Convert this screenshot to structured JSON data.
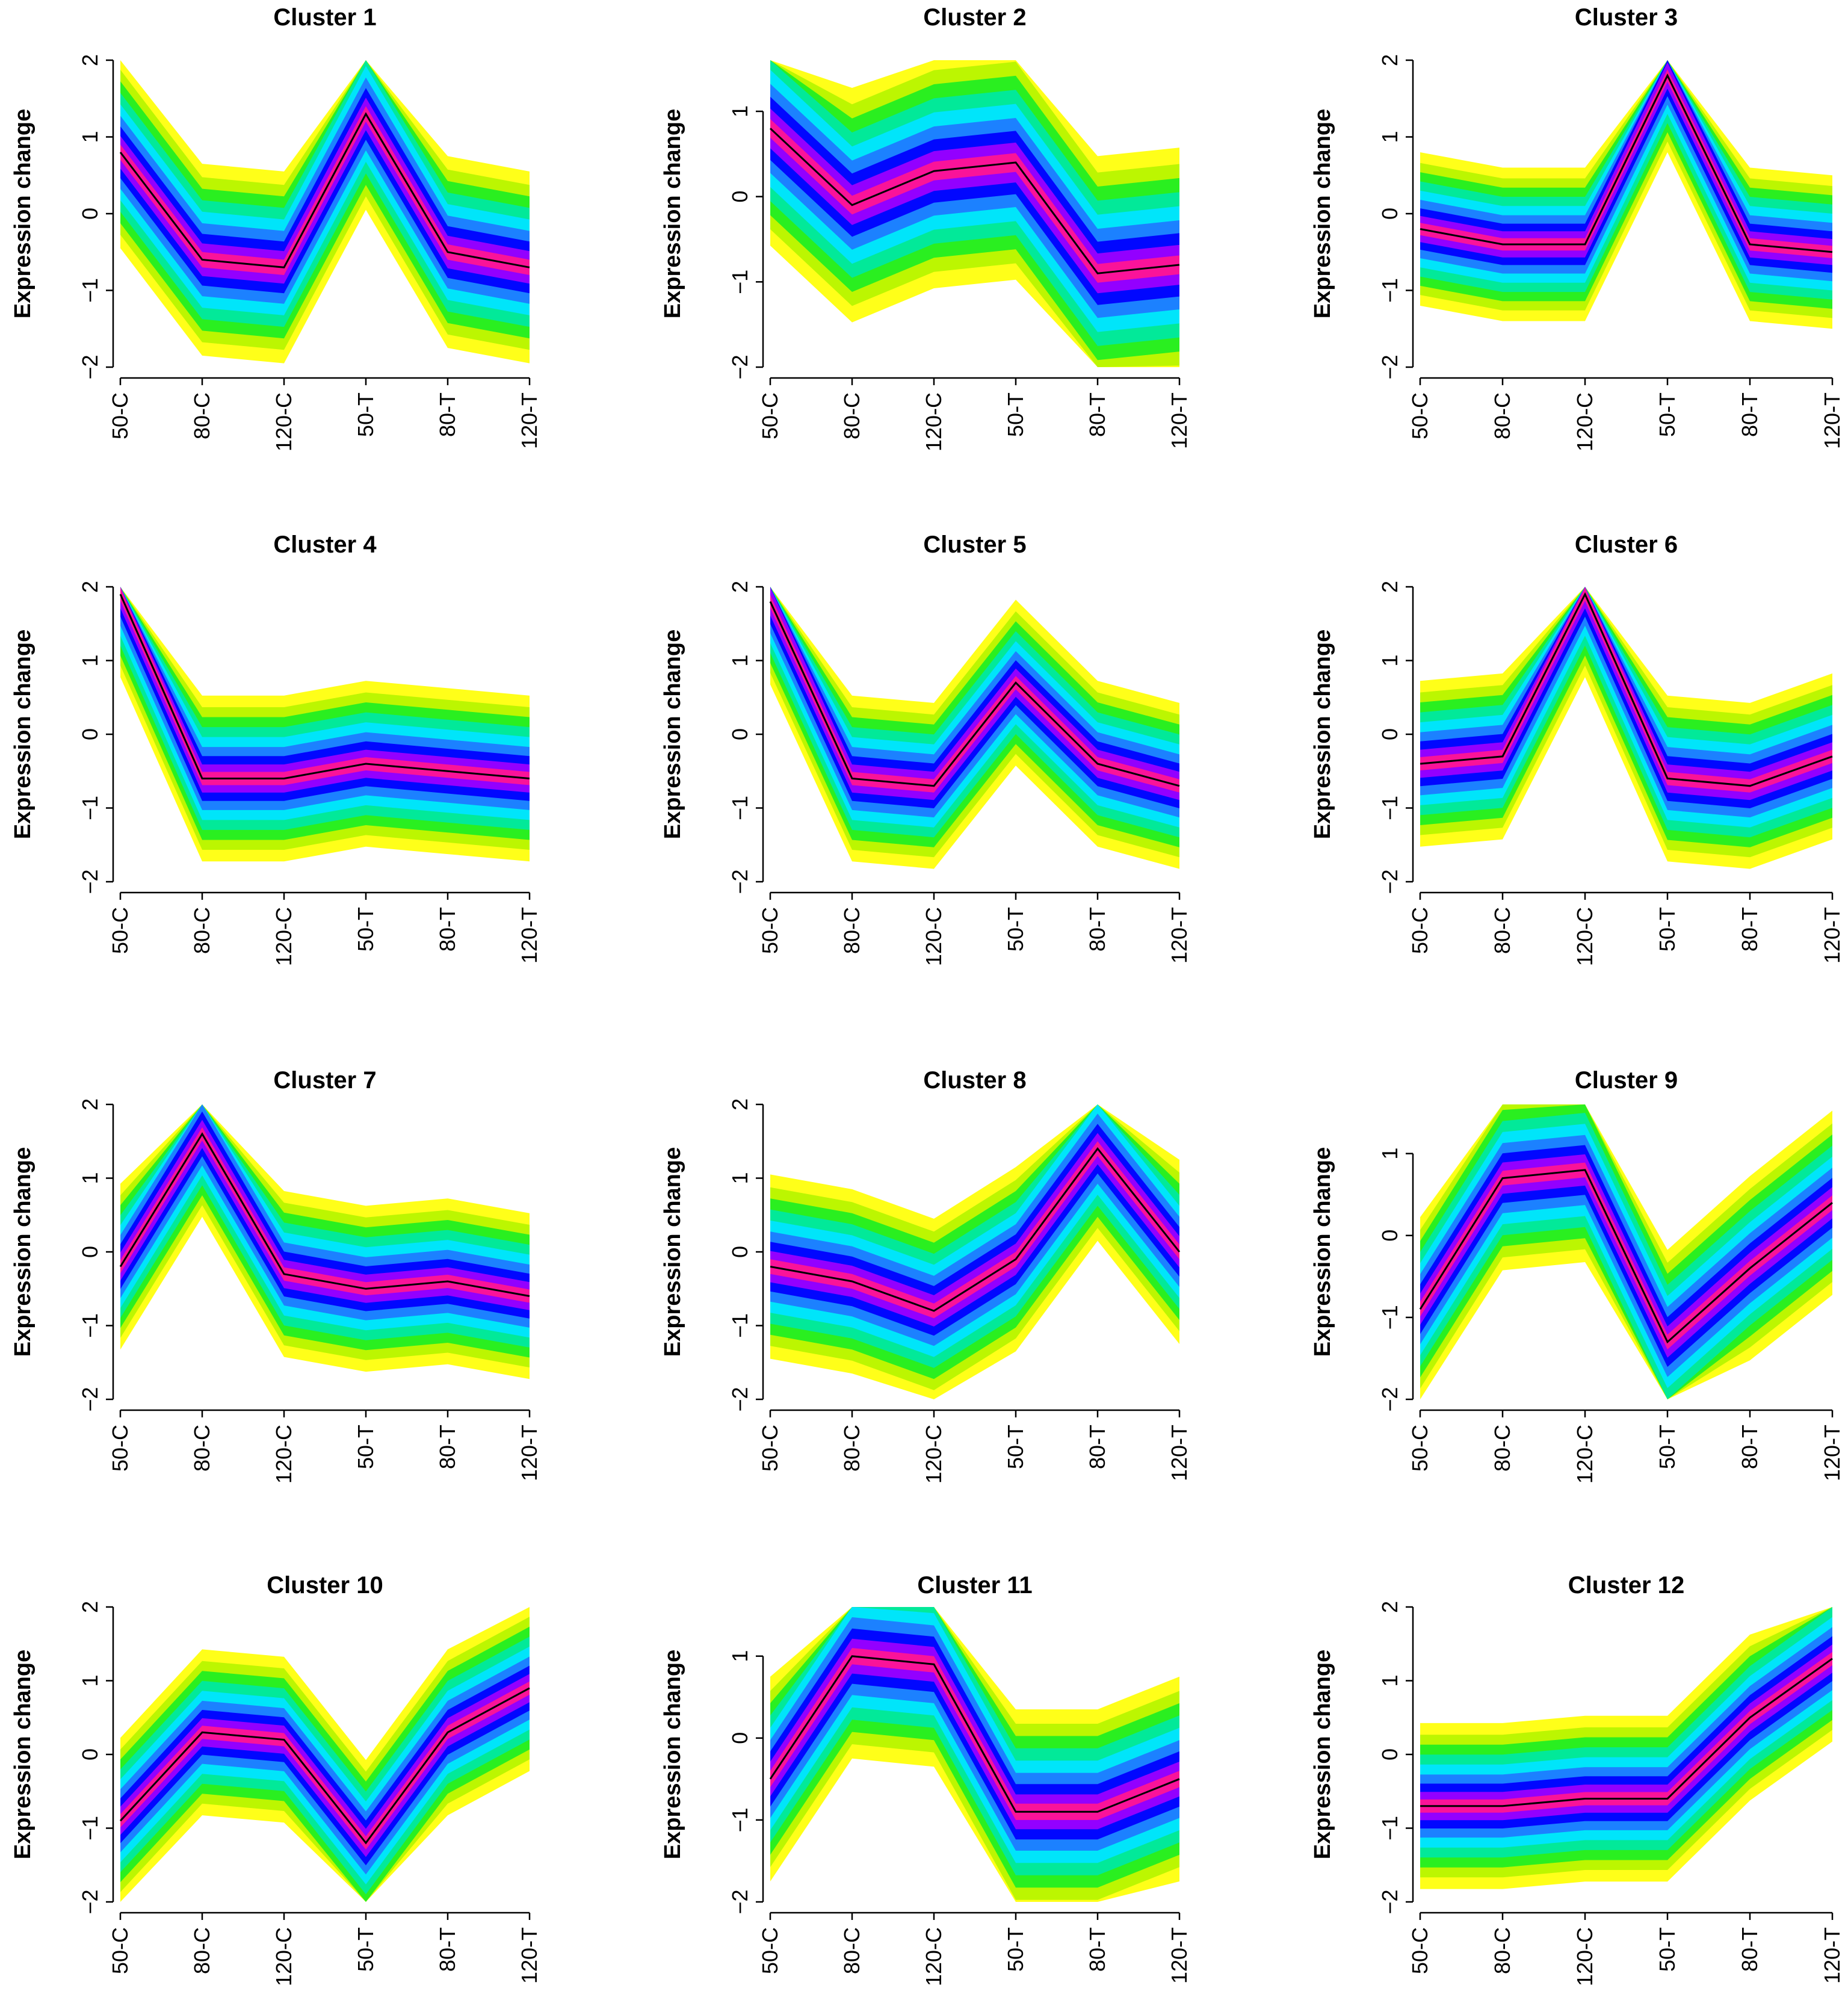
{
  "figure": {
    "ylabel": "Expression change",
    "colors": {
      "core": "#ff1493",
      "inner": "#0000ff",
      "middle": "#00e5ff",
      "outer": "#22ee22",
      "edge": "#ffff00",
      "centroid": "#000000"
    }
  },
  "chart_data": [
    {
      "type": "line",
      "title": "Cluster 1",
      "ylabel": "Expression change",
      "categories": [
        "50-C",
        "80-C",
        "120-C",
        "50-T",
        "80-T",
        "120-T"
      ],
      "yticks": [
        -2,
        -1,
        0,
        1,
        2
      ],
      "ylim": [
        -2,
        2
      ],
      "centroid": [
        0.8,
        -0.6,
        -0.7,
        1.3,
        -0.5,
        -0.7
      ],
      "spread": 1.0
    },
    {
      "type": "line",
      "title": "Cluster 2",
      "ylabel": "Expression change",
      "categories": [
        "50-C",
        "80-C",
        "120-C",
        "50-T",
        "80-T",
        "120-T"
      ],
      "yticks": [
        -2,
        -1,
        0,
        1
      ],
      "ylim": [
        -2,
        1.6
      ],
      "centroid": [
        0.8,
        -0.1,
        0.3,
        0.4,
        -0.9,
        -0.8
      ],
      "spread": 1.1
    },
    {
      "type": "line",
      "title": "Cluster 3",
      "ylabel": "Expression change",
      "categories": [
        "50-C",
        "80-C",
        "120-C",
        "50-T",
        "80-T",
        "120-T"
      ],
      "yticks": [
        -2,
        -1,
        0,
        1,
        2
      ],
      "ylim": [
        -2,
        2
      ],
      "centroid": [
        -0.2,
        -0.4,
        -0.4,
        1.8,
        -0.4,
        -0.5
      ],
      "spread": 0.8
    },
    {
      "type": "line",
      "title": "Cluster 4",
      "ylabel": "Expression change",
      "categories": [
        "50-C",
        "80-C",
        "120-C",
        "50-T",
        "80-T",
        "120-T"
      ],
      "yticks": [
        -2,
        -1,
        0,
        1,
        2
      ],
      "ylim": [
        -2,
        2
      ],
      "centroid": [
        1.9,
        -0.6,
        -0.6,
        -0.4,
        -0.5,
        -0.6
      ],
      "spread": 0.9
    },
    {
      "type": "line",
      "title": "Cluster 5",
      "ylabel": "Expression change",
      "categories": [
        "50-C",
        "80-C",
        "120-C",
        "50-T",
        "80-T",
        "120-T"
      ],
      "yticks": [
        -2,
        -1,
        0,
        1,
        2
      ],
      "ylim": [
        -2,
        2
      ],
      "centroid": [
        1.8,
        -0.6,
        -0.7,
        0.7,
        -0.4,
        -0.7
      ],
      "spread": 0.9
    },
    {
      "type": "line",
      "title": "Cluster 6",
      "ylabel": "Expression change",
      "categories": [
        "50-C",
        "80-C",
        "120-C",
        "50-T",
        "80-T",
        "120-T"
      ],
      "yticks": [
        -2,
        -1,
        0,
        1,
        2
      ],
      "ylim": [
        -2,
        2
      ],
      "centroid": [
        -0.4,
        -0.3,
        1.9,
        -0.6,
        -0.7,
        -0.3
      ],
      "spread": 0.9
    },
    {
      "type": "line",
      "title": "Cluster 7",
      "ylabel": "Expression change",
      "categories": [
        "50-C",
        "80-C",
        "120-C",
        "50-T",
        "80-T",
        "120-T"
      ],
      "yticks": [
        -2,
        -1,
        0,
        1,
        2
      ],
      "ylim": [
        -2,
        2
      ],
      "centroid": [
        -0.2,
        1.6,
        -0.3,
        -0.5,
        -0.4,
        -0.6
      ],
      "spread": 0.9
    },
    {
      "type": "line",
      "title": "Cluster 8",
      "ylabel": "Expression change",
      "categories": [
        "50-C",
        "80-C",
        "120-C",
        "50-T",
        "80-T",
        "120-T"
      ],
      "yticks": [
        -2,
        -1,
        0,
        1,
        2
      ],
      "ylim": [
        -2,
        2
      ],
      "centroid": [
        -0.2,
        -0.4,
        -0.8,
        -0.1,
        1.4,
        0.0
      ],
      "spread": 1.0
    },
    {
      "type": "line",
      "title": "Cluster 9",
      "ylabel": "Expression change",
      "categories": [
        "50-C",
        "80-C",
        "120-C",
        "50-T",
        "80-T",
        "120-T"
      ],
      "yticks": [
        -2,
        -1,
        0,
        1
      ],
      "ylim": [
        -2,
        1.6
      ],
      "centroid": [
        -0.9,
        0.7,
        0.8,
        -1.3,
        -0.4,
        0.4
      ],
      "spread": 0.9
    },
    {
      "type": "line",
      "title": "Cluster 10",
      "ylabel": "Expression change",
      "categories": [
        "50-C",
        "80-C",
        "120-C",
        "50-T",
        "80-T",
        "120-T"
      ],
      "yticks": [
        -2,
        -1,
        0,
        1,
        2
      ],
      "ylim": [
        -2,
        2
      ],
      "centroid": [
        -0.9,
        0.3,
        0.2,
        -1.2,
        0.3,
        0.9
      ],
      "spread": 0.9
    },
    {
      "type": "line",
      "title": "Cluster 11",
      "ylabel": "Expression change",
      "categories": [
        "50-C",
        "80-C",
        "120-C",
        "50-T",
        "80-T",
        "120-T"
      ],
      "yticks": [
        -2,
        -1,
        0,
        1
      ],
      "ylim": [
        -2,
        1.6
      ],
      "centroid": [
        -0.5,
        1.0,
        0.9,
        -0.9,
        -0.9,
        -0.5
      ],
      "spread": 1.0
    },
    {
      "type": "line",
      "title": "Cluster 12",
      "ylabel": "Expression change",
      "categories": [
        "50-C",
        "80-C",
        "120-C",
        "50-T",
        "80-T",
        "120-T"
      ],
      "yticks": [
        -2,
        -1,
        0,
        1,
        2
      ],
      "ylim": [
        -2,
        2
      ],
      "centroid": [
        -0.7,
        -0.7,
        -0.6,
        -0.6,
        0.5,
        1.3
      ],
      "spread": 0.9
    }
  ]
}
